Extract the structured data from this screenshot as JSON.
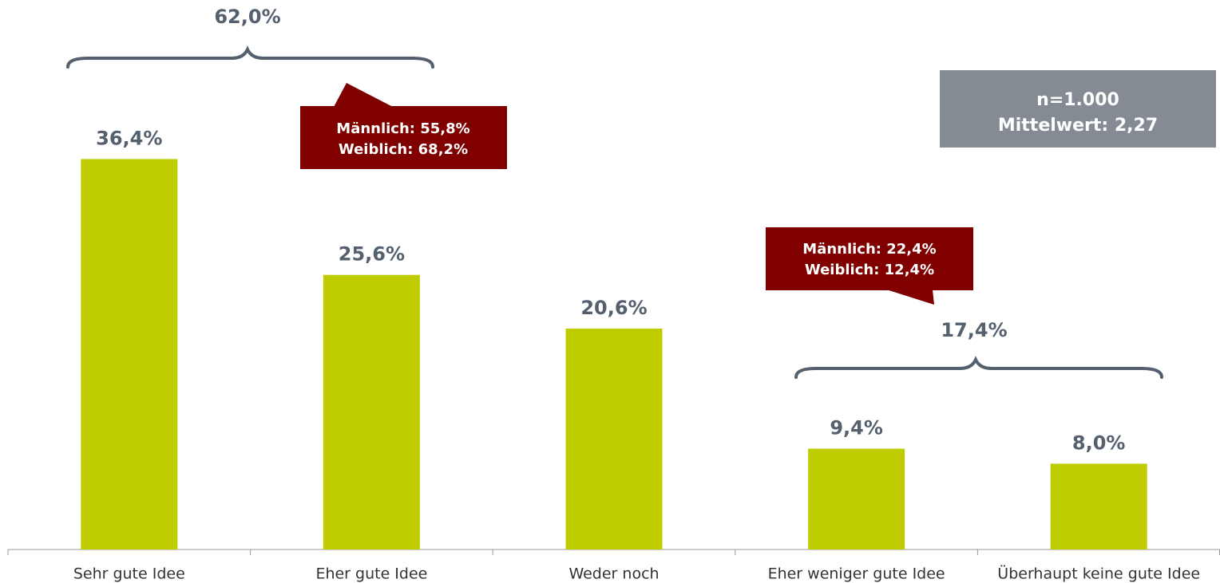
{
  "chart_data": {
    "type": "bar",
    "categories": [
      "Sehr gute Idee",
      "Eher gute Idee",
      "Weder noch",
      "Eher weniger gute Idee",
      "Überhaupt keine gute Idee"
    ],
    "values": [
      36.4,
      25.6,
      20.6,
      9.4,
      8.0
    ],
    "value_labels": [
      "36,4%",
      "25,6%",
      "20,6%",
      "9,4%",
      "8,0%"
    ],
    "color": "#bfcd00",
    "ylim": [
      0,
      50
    ],
    "annotations": {
      "bracket_top": "62,0%",
      "bracket_bottom": "17,4%",
      "callouts": [
        [
          "Männlich: 55,8%",
          "Weiblich: 68,2%"
        ],
        [
          "Männlich: 22,4%",
          "Weiblich: 12,4%"
        ]
      ],
      "info": [
        "n=1.000",
        "Mittelwert: 2,27"
      ]
    }
  }
}
